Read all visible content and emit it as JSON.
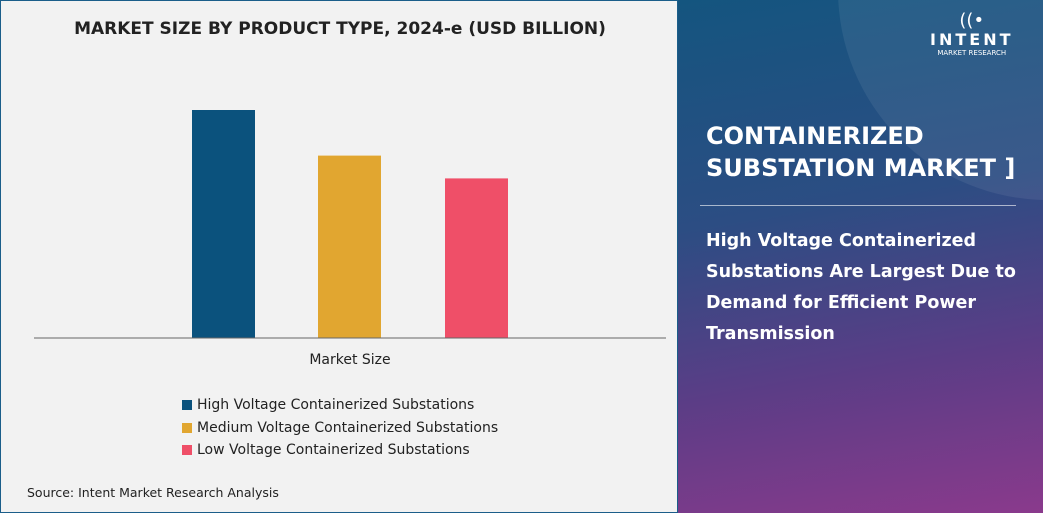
{
  "chart_data": {
    "type": "bar",
    "title": "MARKET SIZE BY PRODUCT TYPE, 2024-e (USD BILLION)",
    "categories": [
      "Market Size"
    ],
    "xlabel": "Market Size",
    "ylabel": "",
    "ylim": [
      0,
      110
    ],
    "grid": false,
    "legend_position": "bottom",
    "series": [
      {
        "name": "High Voltage Containerized Substations",
        "values": [
          100
        ],
        "color": "#0b527d"
      },
      {
        "name": "Medium Voltage Containerized Substations",
        "values": [
          80
        ],
        "color": "#e1a630"
      },
      {
        "name": "Low Voltage Containerized Substations",
        "values": [
          70
        ],
        "color": "#ef4f68"
      }
    ]
  },
  "source": "Source: Intent Market Research Analysis",
  "panel": {
    "logo": {
      "word": "INTENT",
      "sub": "MARKET RESEARCH",
      "tm": "TM"
    },
    "title": "CONTAINERIZED SUBSTATION MARKET ]",
    "subtitle": "High Voltage Containerized Substations Are Largest Due to Demand for Efficient Power Transmission"
  }
}
